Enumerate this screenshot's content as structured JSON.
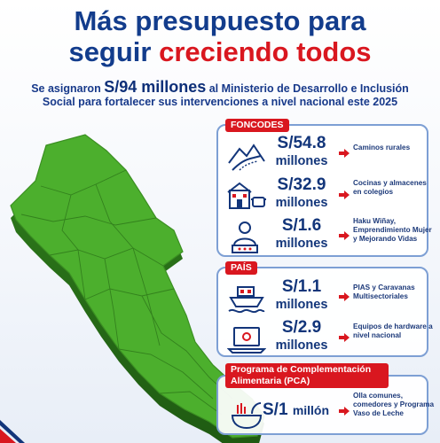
{
  "title": {
    "line1": "Más presupuesto para",
    "line2a": "seguir ",
    "line2b": "creciendo todos"
  },
  "intro": {
    "pre": "Se asignaron ",
    "amount": "S/94 millones",
    "post1": " al Ministerio de Desarrollo e Inclusión",
    "line2": "Social para fortalecer sus intervenciones a nivel nacional este 2025"
  },
  "colors": {
    "navy": "#12357a",
    "red": "#d9171f",
    "map_green": "#4caf2d",
    "panel_border": "#7d9fd4"
  },
  "foncodes": {
    "label": "FONCODES",
    "items": [
      {
        "icon": "road-icon",
        "amount": "S/54.8",
        "unit": "millones",
        "desc": "Caminos rurales"
      },
      {
        "icon": "school-icon",
        "amount": "S/32.9",
        "unit": "millones",
        "desc": "Cocinas y almacenes en colegios"
      },
      {
        "icon": "person-icon",
        "amount": "S/1.6",
        "unit": "millones",
        "desc": "Haku Wiñay, Emprendimiento Mujer y Mejorando Vidas"
      }
    ]
  },
  "pais": {
    "label": "PAÍS",
    "items": [
      {
        "icon": "ship-icon",
        "amount": "S/1.1",
        "unit": "millones",
        "desc": "PIAS y Caravanas Multisectoriales"
      },
      {
        "icon": "laptop-icon",
        "amount": "S/2.9",
        "unit": "millones",
        "desc": "Equipos de hardware a nivel nacional"
      }
    ]
  },
  "pca": {
    "label_line1": "Programa de Complementación",
    "label_line2": "Alimentaria (PCA)",
    "items": [
      {
        "icon": "food-icon",
        "amount": "S/1",
        "unit": "millón",
        "desc": "Olla comunes, comedores y Programa Vaso de Leche"
      }
    ]
  }
}
